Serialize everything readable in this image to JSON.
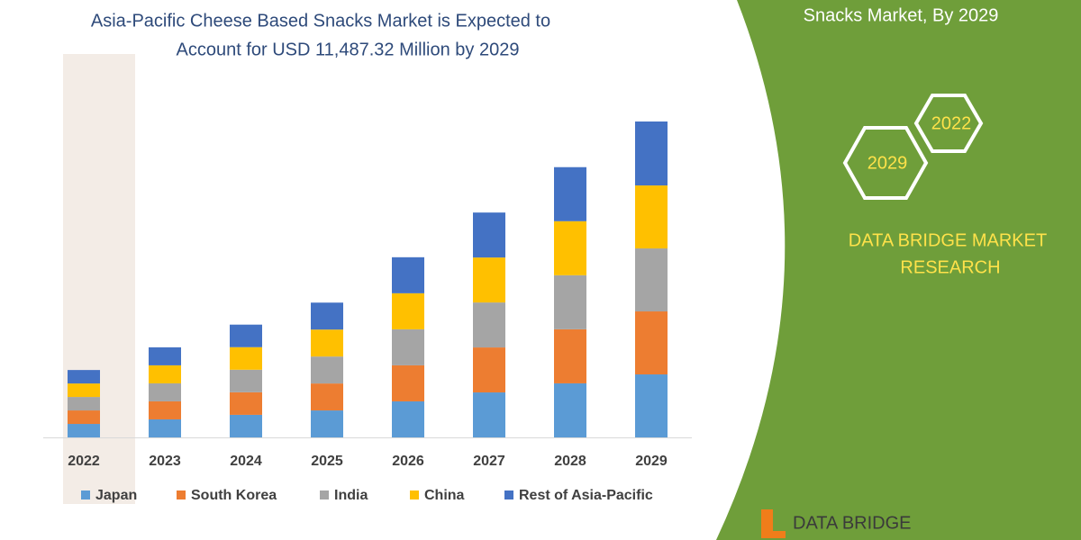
{
  "chart_data": {
    "type": "stacked-bar",
    "title": [
      "Asia-Pacific Cheese Based Snacks Market is Expected to",
      "Account for USD 11,487.32 Million by 2029"
    ],
    "categories": [
      "2022",
      "2023",
      "2024",
      "2025",
      "2026",
      "2027",
      "2028",
      "2029"
    ],
    "series": [
      {
        "name": "Japan",
        "color": "#5b9bd5",
        "values": [
          490,
          655,
          820,
          980,
          1310,
          1635,
          1965,
          2290
        ]
      },
      {
        "name": "South Korea",
        "color": "#ed7d31",
        "values": [
          490,
          655,
          820,
          980,
          1310,
          1635,
          1965,
          2290
        ]
      },
      {
        "name": "India",
        "color": "#a5a5a5",
        "values": [
          490,
          655,
          820,
          980,
          1310,
          1635,
          1965,
          2290
        ]
      },
      {
        "name": "China",
        "color": "#ffc000",
        "values": [
          490,
          655,
          820,
          980,
          1310,
          1635,
          1965,
          2290
        ]
      },
      {
        "name": "Rest of Asia-Pacific",
        "color": "#4472c4",
        "values": [
          490,
          655,
          820,
          980,
          1310,
          1635,
          1965,
          2325
        ]
      }
    ],
    "legend": "bottom"
  },
  "panel": {
    "heading": "Snacks Market, By 2029",
    "hexagons": [
      "2022",
      "2029"
    ],
    "brand": [
      "DATA BRIDGE MARKET",
      "RESEARCH"
    ],
    "logo": "DATA BRIDGE"
  }
}
